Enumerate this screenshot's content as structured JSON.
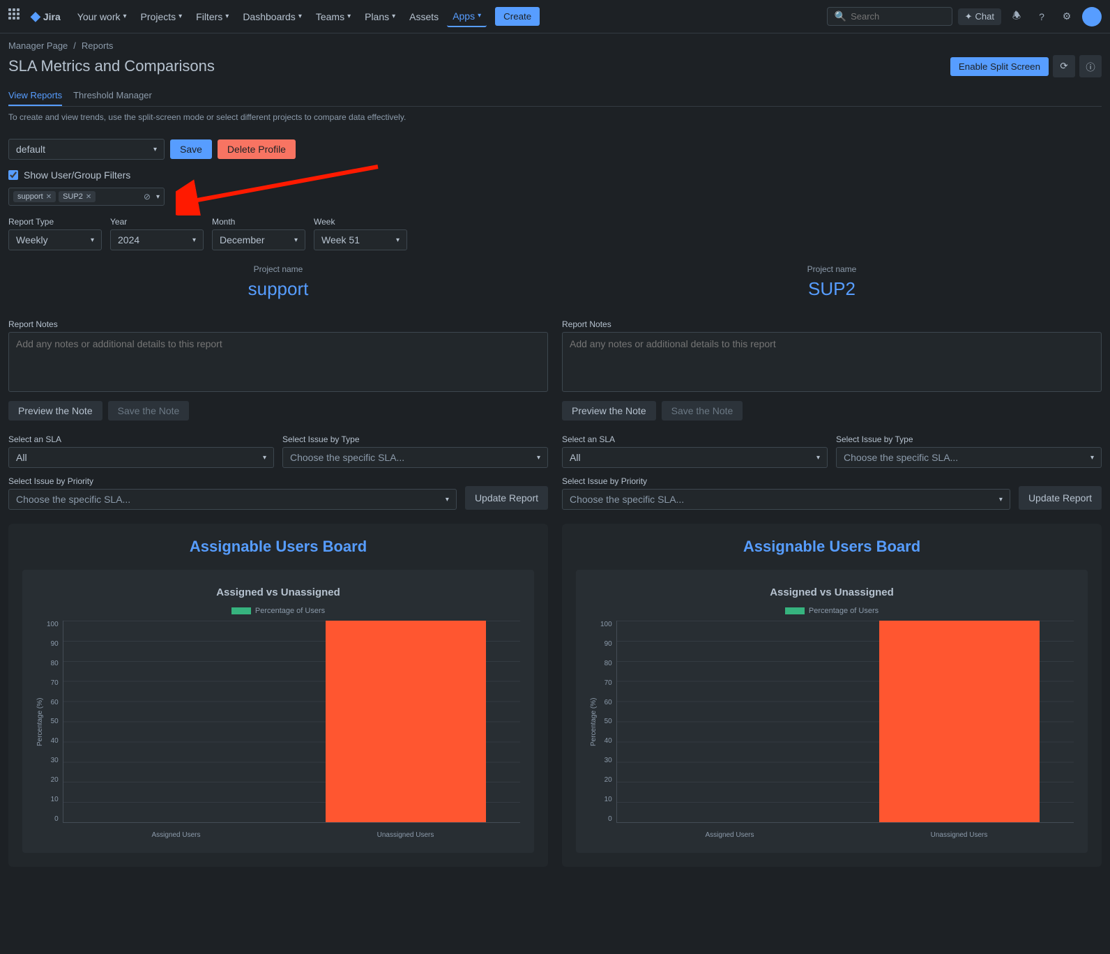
{
  "nav": {
    "logo": "Jira",
    "items": [
      "Your work",
      "Projects",
      "Filters",
      "Dashboards",
      "Teams",
      "Plans",
      "Assets",
      "Apps"
    ],
    "create": "Create",
    "search_placeholder": "Search",
    "chat": "Chat"
  },
  "breadcrumb": {
    "p1": "Manager Page",
    "p2": "Reports"
  },
  "title": "SLA Metrics and Comparisons",
  "header_actions": {
    "split": "Enable Split Screen"
  },
  "tabs": {
    "t1": "View Reports",
    "t2": "Threshold Manager"
  },
  "help": "To create and view trends, use the split-screen mode or select different projects to compare data effectively.",
  "profile": {
    "selected": "default",
    "save": "Save",
    "delete": "Delete Profile"
  },
  "filter_cb": "Show User/Group Filters",
  "tags": [
    "support",
    "SUP2"
  ],
  "filters": {
    "report_type": {
      "label": "Report Type",
      "value": "Weekly"
    },
    "year": {
      "label": "Year",
      "value": "2024"
    },
    "month": {
      "label": "Month",
      "value": "December"
    },
    "week": {
      "label": "Week",
      "value": "Week 51"
    }
  },
  "project_name_label": "Project name",
  "projects": {
    "left": "support",
    "right": "SUP2"
  },
  "notes": {
    "label": "Report Notes",
    "placeholder": "Add any notes or additional details to this report",
    "preview": "Preview the Note",
    "save": "Save the Note"
  },
  "sla": {
    "select_label": "Select an SLA",
    "select_value": "All",
    "type_label": "Select Issue by Type",
    "type_value": "Choose the specific SLA...",
    "priority_label": "Select Issue by Priority",
    "priority_value": "Choose the specific SLA...",
    "update": "Update Report"
  },
  "chart": {
    "card_title": "Assignable Users Board",
    "subtitle": "Assigned vs Unassigned",
    "legend": "Percentage of Users",
    "y_label": "Percentage (%)",
    "y_ticks": [
      "100",
      "90",
      "80",
      "70",
      "60",
      "50",
      "40",
      "30",
      "20",
      "10",
      "0"
    ],
    "x_labels": [
      "Assigned Users",
      "Unassigned Users"
    ],
    "bars": [
      {
        "value": 0,
        "color": "#36b37e"
      },
      {
        "value": 100,
        "color": "#ff5630"
      }
    ],
    "legend_color": "#36b37e"
  },
  "arrow_color": "#ff1a00"
}
